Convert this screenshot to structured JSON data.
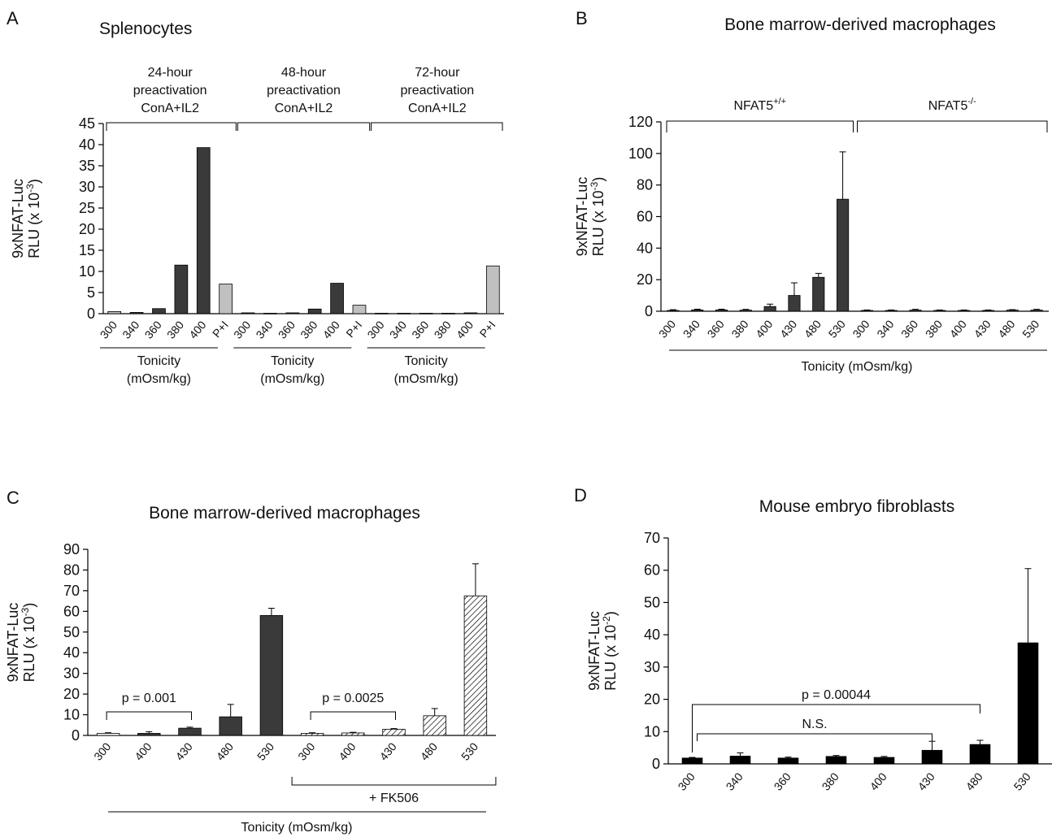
{
  "colors": {
    "dark": "#3a3a3a",
    "black": "#000000",
    "light": "#c0c0c0",
    "white": "#ffffff"
  },
  "chart_data": [
    {
      "panel": "A",
      "type": "bar",
      "title": "Splenocytes",
      "ylabel_line1": "9xNFAT-Luc",
      "ylabel_line2": "RLU (x 10",
      "ylabel_exp": "-3",
      "ylabel_end": ")",
      "ylim": [
        0,
        45
      ],
      "yticks": [
        0,
        5,
        10,
        15,
        20,
        25,
        30,
        35,
        40,
        45
      ],
      "categories": [
        "300",
        "340",
        "360",
        "380",
        "400",
        "P+I",
        "300",
        "340",
        "360",
        "380",
        "400",
        "P+I",
        "300",
        "340",
        "360",
        "380",
        "400",
        "P+I"
      ],
      "values": [
        0.5,
        0.3,
        1.2,
        11.5,
        39.3,
        7.0,
        0.2,
        0.1,
        0.2,
        1.1,
        7.2,
        2.0,
        0.1,
        0.1,
        0.1,
        0.1,
        0.2,
        11.3
      ],
      "fills": [
        "light",
        "dark",
        "dark",
        "dark",
        "dark",
        "light",
        "dark",
        "dark",
        "dark",
        "dark",
        "dark",
        "light",
        "dark",
        "dark",
        "dark",
        "dark",
        "dark",
        "light"
      ],
      "top_groups": [
        {
          "lines": [
            "24-hour",
            "preactivation",
            "ConA+IL2"
          ],
          "start": 0,
          "end": 5
        },
        {
          "lines": [
            "48-hour",
            "preactivation",
            "ConA+IL2"
          ],
          "start": 6,
          "end": 11
        },
        {
          "lines": [
            "72-hour",
            "preactivation",
            "ConA+IL2"
          ],
          "start": 12,
          "end": 17
        }
      ],
      "bottom_groups": [
        {
          "lines": [
            "Tonicity",
            "(mOsm/kg)"
          ],
          "start": 0,
          "end": 4
        },
        {
          "lines": [
            "Tonicity",
            "(mOsm/kg)"
          ],
          "start": 6,
          "end": 10
        },
        {
          "lines": [
            "Tonicity",
            "(mOsm/kg)"
          ],
          "start": 12,
          "end": 16
        }
      ]
    },
    {
      "panel": "B",
      "type": "bar",
      "title": "Bone marrow-derived macrophages",
      "ylabel_line1": "9xNFAT-Luc",
      "ylabel_line2": "RLU (x 10",
      "ylabel_exp": "-3",
      "ylabel_end": ")",
      "ylim": [
        0,
        120
      ],
      "yticks": [
        0,
        20,
        40,
        60,
        80,
        100,
        120
      ],
      "categories": [
        "300",
        "340",
        "360",
        "380",
        "400",
        "430",
        "480",
        "530",
        "300",
        "340",
        "360",
        "380",
        "400",
        "430",
        "480",
        "530"
      ],
      "values": [
        0.5,
        0.8,
        0.8,
        0.7,
        3.0,
        10.0,
        21.5,
        71.0,
        0.5,
        0.5,
        0.7,
        0.5,
        0.5,
        0.5,
        0.7,
        0.7
      ],
      "errors": [
        0.5,
        0.5,
        0.5,
        0.5,
        1.5,
        8.0,
        2.5,
        30.0,
        0.3,
        0.3,
        0.5,
        0.3,
        0.3,
        0.3,
        0.3,
        0.5
      ],
      "fills": [
        "dark",
        "dark",
        "dark",
        "dark",
        "dark",
        "dark",
        "dark",
        "dark",
        "dark",
        "dark",
        "dark",
        "dark",
        "dark",
        "dark",
        "dark",
        "dark"
      ],
      "top_groups": [
        {
          "label": "NFAT5",
          "sup": "+/+",
          "start": 0,
          "end": 7
        },
        {
          "label": "NFAT5",
          "sup": "-/-",
          "start": 8,
          "end": 15
        }
      ],
      "xlabel": "Tonicity (mOsm/kg)"
    },
    {
      "panel": "C",
      "type": "bar",
      "title": "Bone marrow-derived macrophages",
      "ylabel_line1": "9xNFAT-Luc",
      "ylabel_line2": "RLU (x 10",
      "ylabel_exp": "-3",
      "ylabel_end": ")",
      "ylim": [
        0,
        90
      ],
      "yticks": [
        0,
        10,
        20,
        30,
        40,
        50,
        60,
        70,
        80,
        90
      ],
      "categories": [
        "300",
        "400",
        "430",
        "480",
        "530",
        "300",
        "400",
        "430",
        "480",
        "530"
      ],
      "values": [
        1.0,
        1.0,
        3.5,
        9.0,
        58.0,
        1.0,
        1.2,
        3.0,
        9.5,
        67.5
      ],
      "errors": [
        0.3,
        0.8,
        0.5,
        6.0,
        3.5,
        0.3,
        0.3,
        0.3,
        3.5,
        15.5
      ],
      "fills": [
        "white",
        "dark",
        "dark",
        "dark",
        "dark",
        "hatch",
        "hatch",
        "hatch",
        "hatch",
        "hatch"
      ],
      "annotations": [
        {
          "text": "p = 0.001",
          "start": 0,
          "end": 2
        },
        {
          "text": "p = 0.0025",
          "start": 5,
          "end": 7
        }
      ],
      "group_label": {
        "text": "+ FK506",
        "start": 5,
        "end": 9
      },
      "xlabel": "Tonicity (mOsm/kg)"
    },
    {
      "panel": "D",
      "type": "bar",
      "title": "Mouse embryo fibroblasts",
      "ylabel_line1": "9xNFAT-Luc",
      "ylabel_line2": "RLU (x 10",
      "ylabel_exp": "-2",
      "ylabel_end": ")",
      "ylim": [
        0,
        70
      ],
      "yticks": [
        0,
        10,
        20,
        30,
        40,
        50,
        60,
        70
      ],
      "categories": [
        "300",
        "340",
        "360",
        "380",
        "400",
        "430",
        "480",
        "530"
      ],
      "values": [
        1.8,
        2.4,
        1.8,
        2.3,
        2.0,
        4.2,
        6.0,
        37.5
      ],
      "errors": [
        0.2,
        1.0,
        0.3,
        0.3,
        0.3,
        2.8,
        1.3,
        23.0
      ],
      "fills": [
        "black",
        "black",
        "black",
        "black",
        "black",
        "black",
        "black",
        "black"
      ],
      "annotations": [
        {
          "text": "p = 0.00044",
          "start": 0,
          "end": 6
        },
        {
          "text": "N.S.",
          "start": 0,
          "end": 5
        }
      ]
    }
  ]
}
